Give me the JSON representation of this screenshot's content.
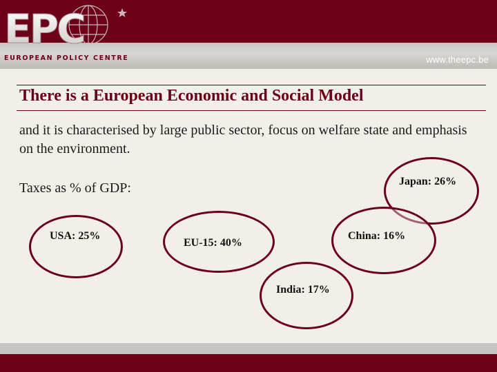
{
  "header": {
    "logo_text": "EPC",
    "logo_tagline": "EUROPEAN POLICY CENTRE",
    "url": "www.theepc.be"
  },
  "slide": {
    "title": "There is a European Economic and Social Model",
    "subtitle": "and it is characterised by large public sector, focus on welfare state and emphasis on the environment.",
    "taxes_label": "Taxes as % of GDP:",
    "countries": [
      {
        "label": "USA: 25%"
      },
      {
        "label": "EU-15: 40%"
      },
      {
        "label": "Japan: 26%"
      },
      {
        "label": "China: 16%"
      },
      {
        "label": "India: 17%"
      }
    ]
  },
  "colors": {
    "brand": "#6d0019",
    "background": "#f2efe8",
    "band": "#c8c6c2"
  }
}
